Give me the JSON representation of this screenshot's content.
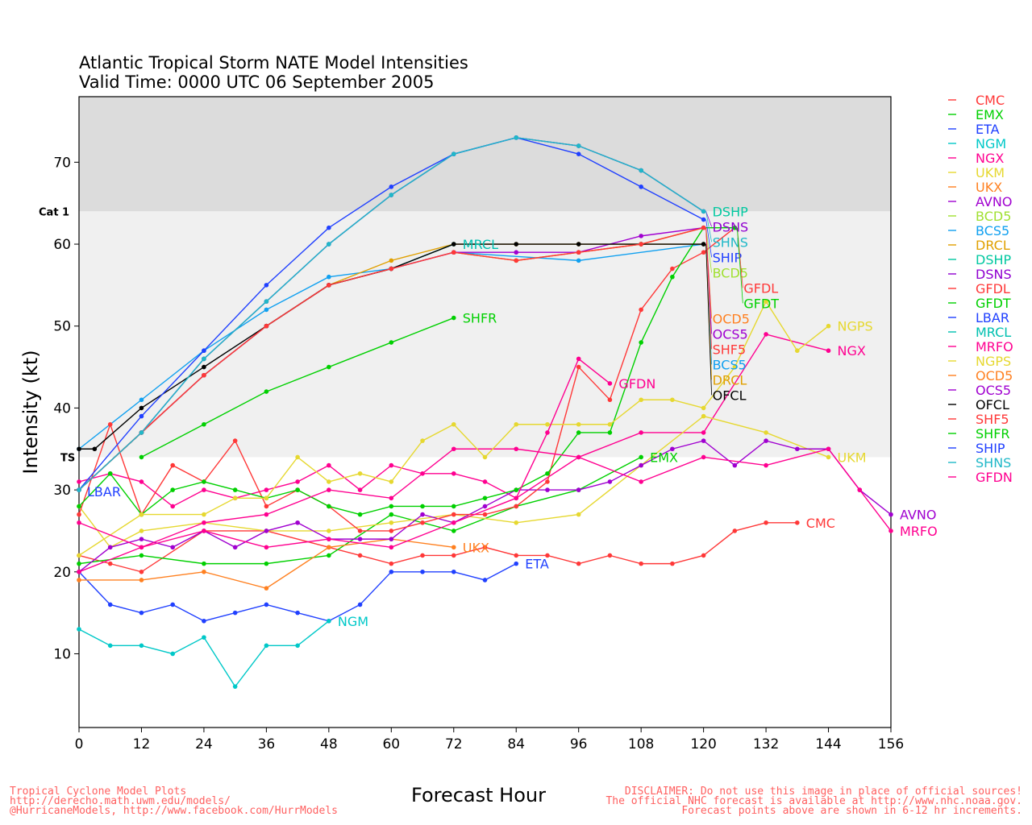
{
  "title_line1": "Atlantic Tropical Storm NATE Model Intensities",
  "title_line2": "Valid Time: 0000 UTC 06 September 2005",
  "footer_left": [
    "Tropical Cyclone Model Plots",
    "http://derecho.math.uwm.edu/models/",
    "@HurricaneModels, http://www.facebook.com/HurrModels"
  ],
  "footer_right": [
    "DISCLAIMER: Do not use this image in place of official sources!",
    "The official NHC forecast is available at http://www.nhc.noaa.gov.",
    "Forecast points above are shown in 6-12 hr increments."
  ],
  "chart_data": {
    "type": "line",
    "xlabel": "Forecast Hour",
    "ylabel": "Intensity (kt)",
    "xlim": [
      0,
      156
    ],
    "ylim": [
      1,
      78
    ],
    "xticks": [
      0,
      12,
      24,
      36,
      48,
      60,
      72,
      84,
      96,
      108,
      120,
      132,
      144,
      156
    ],
    "yticks": [
      10,
      20,
      30,
      40,
      50,
      60,
      70
    ],
    "thresholds": [
      {
        "label": "Cat 1",
        "value": 64,
        "color": "#dcdcdc"
      },
      {
        "label": "TS",
        "value": 34,
        "color": "#f0f0f0"
      }
    ],
    "legend_position": "right",
    "series": [
      {
        "name": "CMC",
        "color": "#ff3838",
        "x": [
          0,
          6,
          12,
          24,
          36,
          48,
          54,
          60,
          66,
          72,
          78,
          84,
          90,
          96,
          102,
          108,
          114,
          120,
          126,
          132,
          138
        ],
        "y": [
          22,
          21,
          20,
          25,
          25,
          23,
          22,
          21,
          22,
          22,
          23,
          22,
          22,
          21,
          22,
          21,
          21,
          22,
          25,
          26,
          26
        ]
      },
      {
        "name": "EMX",
        "color": "#00d000",
        "x": [
          0,
          12,
          24,
          36,
          48,
          60,
          72,
          84,
          96,
          108
        ],
        "y": [
          21,
          22,
          21,
          21,
          22,
          27,
          25,
          28,
          30,
          34
        ]
      },
      {
        "name": "ETA",
        "color": "#2040ff",
        "x": [
          0,
          6,
          12,
          18,
          24,
          30,
          36,
          42,
          48,
          54,
          60,
          66,
          72,
          78,
          84
        ],
        "y": [
          20,
          16,
          15,
          16,
          14,
          15,
          16,
          15,
          14,
          16,
          20,
          20,
          20,
          19,
          21
        ]
      },
      {
        "name": "NGM",
        "color": "#00c8c8",
        "x": [
          0,
          6,
          12,
          18,
          24,
          30,
          36,
          42,
          48
        ],
        "y": [
          13,
          11,
          11,
          10,
          12,
          6,
          11,
          11,
          14
        ]
      },
      {
        "name": "NGX",
        "color": "#ff0090",
        "x": [
          0,
          6,
          12,
          18,
          24,
          30,
          36,
          42,
          48,
          54,
          60,
          66,
          72,
          78,
          84,
          96,
          108,
          120,
          132,
          144
        ],
        "y": [
          31,
          32,
          31,
          28,
          30,
          29,
          30,
          31,
          33,
          30,
          33,
          32,
          32,
          31,
          29,
          34,
          37,
          37,
          49,
          47
        ]
      },
      {
        "name": "UKM",
        "color": "#e6d830",
        "x": [
          0,
          6,
          12,
          24,
          36,
          48,
          60,
          72,
          84,
          96,
          108,
          120,
          132,
          144
        ],
        "y": [
          28,
          23,
          25,
          26,
          25,
          25,
          26,
          27,
          26,
          27,
          33,
          39,
          37,
          34
        ]
      },
      {
        "name": "UKX",
        "color": "#ff8020",
        "x": [
          0,
          12,
          24,
          36,
          48,
          60,
          72
        ],
        "y": [
          19,
          19,
          20,
          18,
          23,
          24,
          23
        ]
      },
      {
        "name": "AVNO",
        "color": "#a000d0",
        "x": [
          0,
          6,
          12,
          18,
          24,
          30,
          36,
          42,
          48,
          54,
          60,
          66,
          72,
          78,
          84,
          90,
          96,
          102,
          108,
          114,
          120,
          126,
          132,
          138,
          144,
          150,
          156
        ],
        "y": [
          20,
          23,
          24,
          23,
          25,
          23,
          25,
          26,
          24,
          24,
          24,
          27,
          26,
          28,
          30,
          30,
          30,
          31,
          33,
          35,
          36,
          33,
          36,
          35,
          35,
          30,
          27
        ]
      },
      {
        "name": "BCD5",
        "color": "#a0e030",
        "x": [
          0,
          12,
          24,
          36,
          48,
          60,
          72,
          84,
          96,
          108,
          120
        ],
        "y": [
          30,
          37,
          44,
          50,
          55,
          57,
          59,
          58,
          59,
          60,
          62
        ]
      },
      {
        "name": "BCS5",
        "color": "#10a0f0",
        "x": [
          0,
          12,
          24,
          36,
          48,
          60,
          72,
          96,
          120
        ],
        "y": [
          35,
          41,
          47,
          52,
          56,
          57,
          59,
          58,
          60
        ]
      },
      {
        "name": "DRCL",
        "color": "#e0a000",
        "x": [
          0,
          12,
          24,
          36,
          48,
          60,
          72,
          84,
          96,
          108,
          120
        ],
        "y": [
          30,
          37,
          44,
          50,
          55,
          58,
          60,
          60,
          60,
          60,
          60
        ]
      },
      {
        "name": "DSHP",
        "color": "#00c8a0",
        "x": [
          0,
          12,
          24,
          36,
          48,
          60,
          72,
          84,
          96,
          108,
          120
        ],
        "y": [
          30,
          37,
          46,
          53,
          60,
          66,
          71,
          73,
          72,
          69,
          64
        ]
      },
      {
        "name": "DSNS",
        "color": "#9000d0",
        "x": [
          0,
          12,
          24,
          36,
          48,
          60,
          72,
          84,
          96,
          108,
          120
        ],
        "y": [
          30,
          37,
          46,
          53,
          60,
          66,
          71,
          73,
          72,
          69,
          64
        ]
      },
      {
        "name": "GFDL",
        "color": "#ff3838",
        "x": [
          0,
          6,
          12,
          18,
          24,
          30,
          36,
          42,
          48,
          54,
          60,
          66,
          72,
          78,
          84,
          90,
          96,
          102,
          108,
          114,
          120,
          126
        ],
        "y": [
          27,
          38,
          27,
          33,
          31,
          36,
          28,
          30,
          28,
          25,
          25,
          26,
          27,
          27,
          28,
          31,
          45,
          41,
          52,
          57,
          59,
          62
        ]
      },
      {
        "name": "GFDT",
        "color": "#00d000",
        "x": [
          0,
          6,
          12,
          18,
          24,
          30,
          36,
          42,
          48,
          54,
          60,
          66,
          72,
          78,
          84,
          90,
          96,
          102,
          108,
          114,
          120,
          126
        ],
        "y": [
          28,
          32,
          27,
          30,
          31,
          30,
          29,
          30,
          28,
          27,
          28,
          28,
          28,
          29,
          30,
          32,
          37,
          37,
          48,
          56,
          62,
          62
        ]
      },
      {
        "name": "LBAR",
        "color": "#2040ff",
        "x": [
          0
        ],
        "y": [
          30
        ]
      },
      {
        "name": "MRCL",
        "color": "#00c0b0",
        "x": [
          0,
          12,
          24,
          36,
          48,
          60,
          72
        ],
        "y": [
          30,
          37,
          44,
          50,
          55,
          57,
          60
        ]
      },
      {
        "name": "MRFO",
        "color": "#ff0090",
        "x": [
          0,
          12,
          24,
          36,
          48,
          60,
          72,
          84,
          96,
          108,
          120,
          132,
          144,
          150,
          156
        ],
        "y": [
          20,
          23,
          26,
          27,
          30,
          29,
          35,
          35,
          34,
          31,
          34,
          33,
          35,
          30,
          25
        ]
      },
      {
        "name": "NGPS",
        "color": "#e6d830",
        "x": [
          0,
          12,
          24,
          30,
          36,
          42,
          48,
          54,
          60,
          66,
          72,
          78,
          84,
          90,
          96,
          102,
          108,
          114,
          120,
          126,
          132,
          138,
          144
        ],
        "y": [
          22,
          27,
          27,
          29,
          29,
          34,
          31,
          32,
          31,
          36,
          38,
          34,
          38,
          38,
          38,
          38,
          41,
          41,
          40,
          45,
          53,
          47,
          50
        ]
      },
      {
        "name": "OCD5",
        "color": "#ff8020",
        "x": [
          0,
          12,
          24,
          36,
          48,
          60,
          72,
          84,
          96,
          108,
          120
        ],
        "y": [
          30,
          37,
          44,
          50,
          55,
          57,
          59,
          58,
          59,
          60,
          62
        ]
      },
      {
        "name": "OCS5",
        "color": "#a000d0",
        "x": [
          0,
          12,
          24,
          36,
          48,
          60,
          72,
          84,
          96,
          108,
          120
        ],
        "y": [
          30,
          37,
          44,
          50,
          55,
          57,
          59,
          59,
          59,
          61,
          62
        ]
      },
      {
        "name": "OFCL",
        "color": "#000000",
        "x": [
          0,
          3,
          12,
          24,
          36,
          48,
          60,
          72,
          84,
          96,
          108,
          120
        ],
        "y": [
          35,
          35,
          40,
          45,
          50,
          55,
          57,
          60,
          60,
          60,
          60,
          60
        ]
      },
      {
        "name": "SHF5",
        "color": "#ff3838",
        "x": [
          0,
          12,
          24,
          36,
          48,
          60,
          72,
          84,
          96,
          108,
          120
        ],
        "y": [
          30,
          37,
          44,
          50,
          55,
          57,
          59,
          58,
          59,
          60,
          62
        ]
      },
      {
        "name": "SHFR",
        "color": "#00d000",
        "x": [
          12,
          24,
          36,
          48,
          60,
          72
        ],
        "y": [
          34,
          38,
          42,
          45,
          48,
          51
        ]
      },
      {
        "name": "SHIP",
        "color": "#2040ff",
        "x": [
          0,
          12,
          24,
          36,
          48,
          60,
          72,
          84,
          96,
          108,
          120
        ],
        "y": [
          30,
          39,
          47,
          55,
          62,
          67,
          71,
          73,
          71,
          67,
          63
        ]
      },
      {
        "name": "SHNS",
        "color": "#20b8c8",
        "x": [
          0,
          12,
          24,
          36,
          48,
          60,
          72,
          84,
          96,
          108,
          120
        ],
        "y": [
          30,
          37,
          46,
          53,
          60,
          66,
          71,
          73,
          72,
          69,
          64
        ]
      },
      {
        "name": "GFDN",
        "color": "#ff0090",
        "x": [
          0,
          12,
          24,
          36,
          48,
          60,
          72,
          84,
          90,
          96,
          102
        ],
        "y": [
          26,
          23,
          25,
          23,
          24,
          23,
          26,
          29,
          37,
          46,
          43
        ]
      }
    ]
  }
}
